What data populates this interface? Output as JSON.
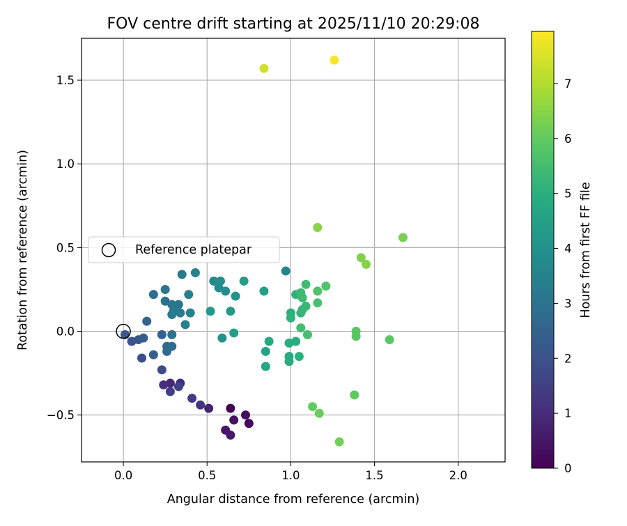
{
  "chart_data": {
    "type": "scatter",
    "title": "FOV centre drift starting at 2025/11/10 20:29:08",
    "xlabel": "Angular distance from reference (arcmin)",
    "ylabel": "Rotation from reference (arcmin)",
    "xlim": [
      -0.25,
      2.28
    ],
    "ylim": [
      -0.78,
      1.75
    ],
    "xticks": [
      0.0,
      0.5,
      1.0,
      1.5,
      2.0
    ],
    "xtick_labels": [
      "0.0",
      "0.5",
      "1.0",
      "1.5",
      "2.0"
    ],
    "yticks": [
      -0.5,
      0.0,
      0.5,
      1.0,
      1.5
    ],
    "ytick_labels": [
      "−0.5",
      "0.0",
      "0.5",
      "1.0",
      "1.5"
    ],
    "grid": true,
    "colorbar": {
      "label": "Hours from first FF file",
      "range": [
        0,
        7.95
      ],
      "ticks": [
        0,
        1,
        2,
        3,
        4,
        5,
        6,
        7
      ],
      "tick_labels": [
        "0",
        "1",
        "2",
        "3",
        "4",
        "5",
        "6",
        "7"
      ],
      "colormap": "viridis"
    },
    "legend": {
      "position": "center-left",
      "entries": [
        {
          "label": "Reference platepar",
          "marker": "open-circle"
        }
      ]
    },
    "reference_point": {
      "x": 0.0,
      "y": 0.0
    },
    "points": [
      {
        "x": 0.64,
        "y": -0.46,
        "t": 0.05
      },
      {
        "x": 0.75,
        "y": -0.55,
        "t": 0.15
      },
      {
        "x": 0.73,
        "y": -0.5,
        "t": 0.25
      },
      {
        "x": 0.66,
        "y": -0.53,
        "t": 0.35
      },
      {
        "x": 0.61,
        "y": -0.59,
        "t": 0.45
      },
      {
        "x": 0.64,
        "y": -0.62,
        "t": 0.55
      },
      {
        "x": 0.51,
        "y": -0.46,
        "t": 0.75
      },
      {
        "x": 0.28,
        "y": -0.31,
        "t": 0.9
      },
      {
        "x": 0.34,
        "y": -0.31,
        "t": 0.95
      },
      {
        "x": 0.24,
        "y": -0.32,
        "t": 1.05
      },
      {
        "x": 0.46,
        "y": -0.44,
        "t": 1.2
      },
      {
        "x": 0.41,
        "y": -0.4,
        "t": 1.35
      },
      {
        "x": 0.28,
        "y": -0.36,
        "t": 1.45
      },
      {
        "x": 0.33,
        "y": -0.33,
        "t": 1.6
      },
      {
        "x": 0.23,
        "y": -0.23,
        "t": 1.8
      },
      {
        "x": 0.11,
        "y": -0.16,
        "t": 1.9
      },
      {
        "x": 0.05,
        "y": -0.06,
        "t": 2.0
      },
      {
        "x": 0.09,
        "y": -0.05,
        "t": 2.1
      },
      {
        "x": 0.01,
        "y": -0.02,
        "t": 2.2
      },
      {
        "x": 0.12,
        "y": -0.04,
        "t": 2.3
      },
      {
        "x": 0.18,
        "y": -0.14,
        "t": 2.4
      },
      {
        "x": 0.23,
        "y": -0.02,
        "t": 2.5
      },
      {
        "x": 0.14,
        "y": 0.06,
        "t": 2.6
      },
      {
        "x": 0.26,
        "y": -0.12,
        "t": 2.7
      },
      {
        "x": 0.26,
        "y": -0.09,
        "t": 2.75
      },
      {
        "x": 0.29,
        "y": -0.09,
        "t": 2.8
      },
      {
        "x": 0.18,
        "y": 0.22,
        "t": 2.85
      },
      {
        "x": 0.25,
        "y": 0.18,
        "t": 2.9
      },
      {
        "x": 0.29,
        "y": -0.02,
        "t": 2.95
      },
      {
        "x": 0.25,
        "y": 0.25,
        "t": 3.0
      },
      {
        "x": 0.29,
        "y": 0.16,
        "t": 3.05
      },
      {
        "x": 0.33,
        "y": 0.16,
        "t": 3.1
      },
      {
        "x": 0.3,
        "y": 0.12,
        "t": 3.15
      },
      {
        "x": 0.29,
        "y": 0.1,
        "t": 3.2
      },
      {
        "x": 0.35,
        "y": 0.34,
        "t": 3.25
      },
      {
        "x": 0.34,
        "y": 0.11,
        "t": 3.3
      },
      {
        "x": 0.37,
        "y": 0.04,
        "t": 3.35
      },
      {
        "x": 0.39,
        "y": 0.22,
        "t": 3.4
      },
      {
        "x": 0.4,
        "y": 0.11,
        "t": 3.45
      },
      {
        "x": 0.43,
        "y": 0.35,
        "t": 3.5
      },
      {
        "x": 0.97,
        "y": 0.36,
        "t": 3.55
      },
      {
        "x": 0.54,
        "y": 0.3,
        "t": 3.7
      },
      {
        "x": 0.57,
        "y": 0.26,
        "t": 3.8
      },
      {
        "x": 0.61,
        "y": 0.24,
        "t": 3.85
      },
      {
        "x": 0.58,
        "y": 0.3,
        "t": 3.9
      },
      {
        "x": 0.59,
        "y": -0.04,
        "t": 4.0
      },
      {
        "x": 0.67,
        "y": 0.21,
        "t": 4.1
      },
      {
        "x": 0.52,
        "y": 0.12,
        "t": 4.2
      },
      {
        "x": 0.64,
        "y": 0.12,
        "t": 4.3
      },
      {
        "x": 0.72,
        "y": 0.3,
        "t": 4.4
      },
      {
        "x": 0.66,
        "y": -0.01,
        "t": 4.45
      },
      {
        "x": 0.84,
        "y": 0.24,
        "t": 4.5
      },
      {
        "x": 0.85,
        "y": -0.12,
        "t": 4.6
      },
      {
        "x": 0.85,
        "y": -0.21,
        "t": 4.7
      },
      {
        "x": 0.87,
        "y": -0.06,
        "t": 4.75
      },
      {
        "x": 0.99,
        "y": -0.15,
        "t": 4.8
      },
      {
        "x": 0.99,
        "y": -0.18,
        "t": 4.85
      },
      {
        "x": 0.99,
        "y": -0.07,
        "t": 4.9
      },
      {
        "x": 1.03,
        "y": -0.06,
        "t": 4.95
      },
      {
        "x": 1.05,
        "y": -0.15,
        "t": 5.0
      },
      {
        "x": 1.0,
        "y": 0.11,
        "t": 5.05
      },
      {
        "x": 1.0,
        "y": 0.08,
        "t": 5.1
      },
      {
        "x": 1.03,
        "y": 0.22,
        "t": 5.15
      },
      {
        "x": 1.06,
        "y": 0.11,
        "t": 5.2
      },
      {
        "x": 1.07,
        "y": 0.13,
        "t": 5.25
      },
      {
        "x": 1.09,
        "y": 0.15,
        "t": 5.3
      },
      {
        "x": 1.06,
        "y": 0.23,
        "t": 5.35
      },
      {
        "x": 1.07,
        "y": 0.2,
        "t": 5.4
      },
      {
        "x": 1.09,
        "y": 0.28,
        "t": 5.45
      },
      {
        "x": 1.06,
        "y": 0.02,
        "t": 5.5
      },
      {
        "x": 1.1,
        "y": -0.02,
        "t": 5.55
      },
      {
        "x": 1.16,
        "y": 0.17,
        "t": 5.6
      },
      {
        "x": 1.16,
        "y": 0.24,
        "t": 5.65
      },
      {
        "x": 1.21,
        "y": 0.27,
        "t": 5.7
      },
      {
        "x": 1.39,
        "y": 0.0,
        "t": 5.8
      },
      {
        "x": 1.39,
        "y": -0.03,
        "t": 5.85
      },
      {
        "x": 1.59,
        "y": -0.05,
        "t": 5.9
      },
      {
        "x": 1.38,
        "y": -0.38,
        "t": 5.95
      },
      {
        "x": 1.13,
        "y": -0.45,
        "t": 6.0
      },
      {
        "x": 1.17,
        "y": -0.49,
        "t": 6.1
      },
      {
        "x": 1.29,
        "y": -0.66,
        "t": 6.2
      },
      {
        "x": 1.67,
        "y": 0.56,
        "t": 6.3
      },
      {
        "x": 1.42,
        "y": 0.44,
        "t": 6.4
      },
      {
        "x": 1.45,
        "y": 0.4,
        "t": 6.45
      },
      {
        "x": 1.16,
        "y": 0.62,
        "t": 6.5
      },
      {
        "x": 0.84,
        "y": 1.57,
        "t": 7.4
      },
      {
        "x": 1.26,
        "y": 1.62,
        "t": 7.9
      }
    ]
  }
}
